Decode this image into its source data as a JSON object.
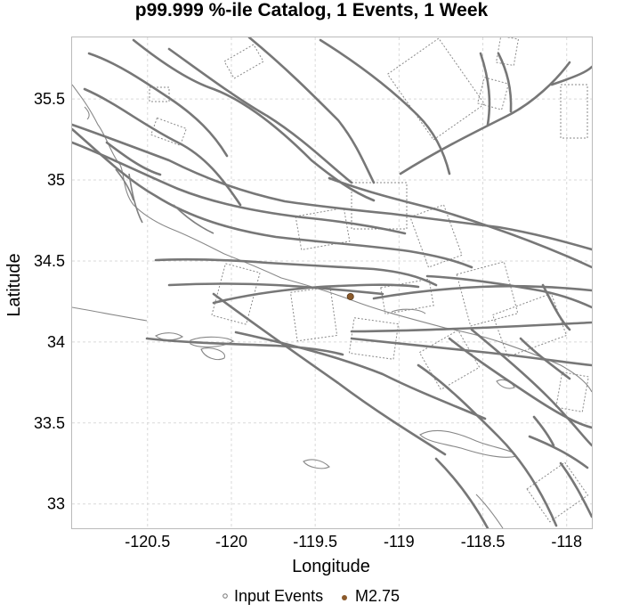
{
  "title": "p99.999 %-ile Catalog, 1 Events, 1 Week",
  "xlabel": "Longitude",
  "ylabel": "Latitude",
  "x_ticks": [
    {
      "value": -120.5,
      "label": "-120.5"
    },
    {
      "value": -120,
      "label": "-120"
    },
    {
      "value": -119.5,
      "label": "-119.5"
    },
    {
      "value": -119,
      "label": "-119"
    },
    {
      "value": -118.5,
      "label": "-118.5"
    },
    {
      "value": -118,
      "label": "-118"
    }
  ],
  "y_ticks": [
    {
      "value": 33,
      "label": "33"
    },
    {
      "value": 33.5,
      "label": "33.5"
    },
    {
      "value": 34,
      "label": "34"
    },
    {
      "value": 34.5,
      "label": "34.5"
    },
    {
      "value": 35,
      "label": "35"
    },
    {
      "value": 35.5,
      "label": "35.5"
    }
  ],
  "legend": {
    "input_events": "Input Events",
    "event_magnitude": "M2.75"
  },
  "colors": {
    "event": "#8b5a2b",
    "fault": "#777777",
    "grid": "#d9d9d9"
  },
  "chart_data": {
    "type": "scatter",
    "title": "p99.999 %-ile Catalog, 1 Events, 1 Week",
    "xlabel": "Longitude",
    "ylabel": "Latitude",
    "xlim": [
      -120.95,
      -117.85
    ],
    "ylim": [
      32.85,
      35.88
    ],
    "grid": true,
    "legend_position": "bottom",
    "series": [
      {
        "name": "Input Events",
        "points": []
      },
      {
        "name": "M2.75",
        "points": [
          {
            "x": -119.29,
            "y": 34.28,
            "magnitude": 2.75
          }
        ]
      }
    ],
    "background_layers": [
      "fault traces",
      "fault rupture surfaces",
      "coastline and islands"
    ]
  }
}
